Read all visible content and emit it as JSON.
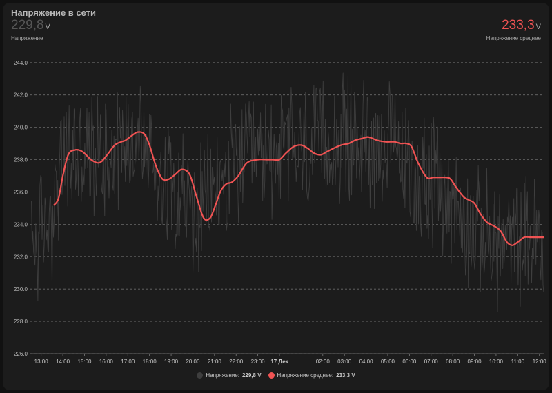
{
  "card": {
    "title": "Напряжение в сети",
    "left_stat": {
      "value": "229,8",
      "unit": "V",
      "label": "Напряжение",
      "color": "#555555"
    },
    "right_stat": {
      "value": "233,3",
      "unit": "V",
      "label": "Напряжение среднее",
      "color": "#f05353"
    }
  },
  "legend": [
    {
      "label": "Напряжение:",
      "value": "229,8 V",
      "color": "#3e3e3e"
    },
    {
      "label": "Напряжение среднее:",
      "value": "233,3 V",
      "color": "#f05353"
    }
  ],
  "chart_data": {
    "type": "line",
    "ylim": [
      226,
      244.8
    ],
    "y_ticks": [
      "226.0",
      "228.0",
      "230.0",
      "232.0",
      "234.0",
      "236.0",
      "238.0",
      "240.0",
      "242.0",
      "244.0"
    ],
    "x_range_hours": [
      12.5,
      36.2
    ],
    "x_ticks": [
      {
        "t": 13,
        "label": "13:00"
      },
      {
        "t": 14,
        "label": "14:00"
      },
      {
        "t": 15,
        "label": "15:00"
      },
      {
        "t": 16,
        "label": "16:00"
      },
      {
        "t": 17,
        "label": "17:00"
      },
      {
        "t": 18,
        "label": "18:00"
      },
      {
        "t": 19,
        "label": "19:00"
      },
      {
        "t": 20,
        "label": "20:00"
      },
      {
        "t": 21,
        "label": "21:00"
      },
      {
        "t": 22,
        "label": "22:00"
      },
      {
        "t": 23,
        "label": "23:00"
      },
      {
        "t": 24,
        "label": "17 Дек",
        "bold": true
      },
      {
        "t": 26,
        "label": "02:00"
      },
      {
        "t": 27,
        "label": "03:00"
      },
      {
        "t": 28,
        "label": "04:00"
      },
      {
        "t": 29,
        "label": "05:00"
      },
      {
        "t": 30,
        "label": "06:00"
      },
      {
        "t": 31,
        "label": "07:00"
      },
      {
        "t": 32,
        "label": "08:00"
      },
      {
        "t": 33,
        "label": "09:00"
      },
      {
        "t": 34,
        "label": "10:00"
      },
      {
        "t": 35,
        "label": "11:00"
      },
      {
        "t": 36,
        "label": "12:00"
      }
    ],
    "grid": true,
    "series": [
      {
        "name": "Напряжение",
        "color": "#3e3e3e",
        "style": "noisy-raw",
        "spread": 3.0,
        "x": [
          12.55,
          13.0,
          13.5,
          14.0,
          14.5,
          15.0,
          15.5,
          16.0,
          16.5,
          17.0,
          17.5,
          18.0,
          18.5,
          19.0,
          19.5,
          20.0,
          20.5,
          21.0,
          21.5,
          22.0,
          22.5,
          23.0,
          23.5,
          24.0,
          24.5,
          25.0,
          25.5,
          26.0,
          26.5,
          27.0,
          27.5,
          28.0,
          28.5,
          29.0,
          29.5,
          30.0,
          30.5,
          31.0,
          31.5,
          32.0,
          32.5,
          33.0,
          33.5,
          34.0,
          34.5,
          35.0,
          35.5,
          36.0,
          36.2
        ],
        "y": [
          232.5,
          233.5,
          234.5,
          237.8,
          238.3,
          238.0,
          238.2,
          238.6,
          239.0,
          239.3,
          239.5,
          238.2,
          236.9,
          237.0,
          236.3,
          234.2,
          235.0,
          236.2,
          236.8,
          237.6,
          238.0,
          237.9,
          238.2,
          238.6,
          238.9,
          238.5,
          238.6,
          238.9,
          239.1,
          239.2,
          239.2,
          239.1,
          239.0,
          239.0,
          238.4,
          237.0,
          236.9,
          236.8,
          236.0,
          235.2,
          234.2,
          233.6,
          233.3,
          232.9,
          232.6,
          232.9,
          233.2,
          233.2,
          229.8
        ]
      },
      {
        "name": "Напряжение среднее",
        "color": "#f05353",
        "style": "smooth",
        "x": [
          13.6,
          13.8,
          14.0,
          14.25,
          14.55,
          14.9,
          15.3,
          15.6,
          15.8,
          16.05,
          16.4,
          16.7,
          16.9,
          17.2,
          17.45,
          17.75,
          18.0,
          18.3,
          18.6,
          18.9,
          19.2,
          19.5,
          19.85,
          20.15,
          20.5,
          20.8,
          21.05,
          21.3,
          21.55,
          21.8,
          22.1,
          22.5,
          23.0,
          23.4,
          23.7,
          24.0,
          24.3,
          24.65,
          25.0,
          25.3,
          25.6,
          25.9,
          26.2,
          26.5,
          26.85,
          27.2,
          27.5,
          27.8,
          28.1,
          28.5,
          28.9,
          29.3,
          29.6,
          29.85,
          30.1,
          30.4,
          30.8,
          31.1,
          31.4,
          31.7,
          31.9,
          32.15,
          32.5,
          32.75,
          33.0,
          33.3,
          33.6,
          33.9,
          34.2,
          34.5,
          34.75,
          35.0,
          35.3,
          35.6,
          36.0,
          36.2
        ],
        "y": [
          235.2,
          235.6,
          237.0,
          238.3,
          238.6,
          238.5,
          238.0,
          237.8,
          237.9,
          238.3,
          238.9,
          239.1,
          239.2,
          239.5,
          239.7,
          239.6,
          238.9,
          237.6,
          236.8,
          236.8,
          237.1,
          237.4,
          237.1,
          235.8,
          234.4,
          234.4,
          235.2,
          236.1,
          236.5,
          236.6,
          237.0,
          237.8,
          238.0,
          238.0,
          238.0,
          238.0,
          238.4,
          238.8,
          238.9,
          238.7,
          238.4,
          238.3,
          238.5,
          238.7,
          238.9,
          239.0,
          239.2,
          239.3,
          239.4,
          239.2,
          239.1,
          239.1,
          239.0,
          239.0,
          238.8,
          237.8,
          236.9,
          236.9,
          236.9,
          236.9,
          236.8,
          236.3,
          235.7,
          235.5,
          235.3,
          234.6,
          234.1,
          233.9,
          233.6,
          232.9,
          232.7,
          232.9,
          233.2,
          233.2,
          233.2,
          233.2
        ]
      }
    ]
  }
}
